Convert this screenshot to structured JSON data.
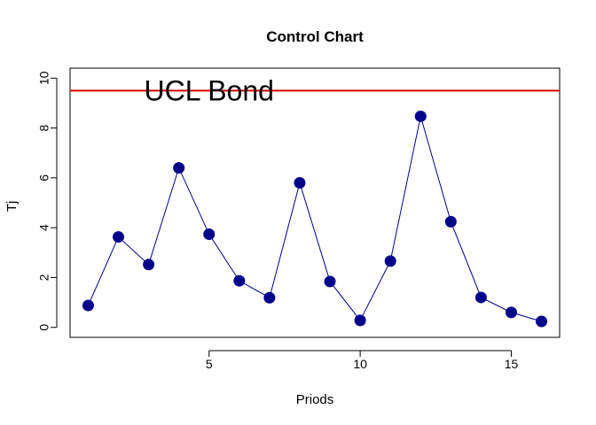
{
  "chart_data": {
    "type": "line",
    "title": "Control Chart",
    "xlabel": "Priods",
    "ylabel": "Tj",
    "x": [
      1,
      2,
      3,
      4,
      5,
      6,
      7,
      8,
      9,
      10,
      11,
      12,
      13,
      14,
      15,
      16
    ],
    "series": [
      {
        "values": [
          0.88,
          3.63,
          2.52,
          6.4,
          3.74,
          1.87,
          1.19,
          5.8,
          1.84,
          0.28,
          2.66,
          8.47,
          4.24,
          1.2,
          0.6,
          0.24
        ],
        "line_color": "#00008B",
        "marker_color": "#00008B"
      }
    ],
    "xlim": [
      0.4,
      16.6
    ],
    "ylim": [
      -0.4,
      10.4
    ],
    "x_ticks": [
      5,
      10,
      15
    ],
    "x_tick_labels": [
      "5",
      "10",
      "15"
    ],
    "y_ticks": [
      0,
      2,
      4,
      6,
      8,
      10
    ],
    "y_tick_labels": [
      "0",
      "2",
      "4",
      "6",
      "8",
      "10"
    ],
    "reference_line": {
      "value": 9.5,
      "color": "#DD0000"
    },
    "annotation": {
      "text": "UCL Bond",
      "x": 2.85,
      "y": 9.5
    },
    "grid": false,
    "legend": "none"
  }
}
